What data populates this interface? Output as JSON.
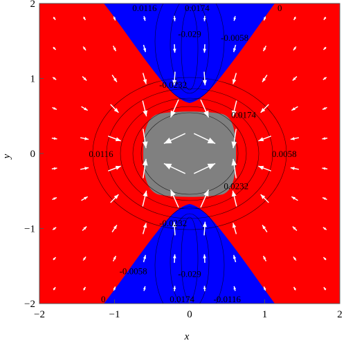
{
  "chart_data": {
    "type": "heatmap",
    "title": "",
    "xlabel": "x",
    "ylabel": "y",
    "xlim": [
      -2,
      2
    ],
    "ylim": [
      -2,
      2
    ],
    "x_ticks": [
      "-2",
      "-1",
      "0",
      "1",
      "2"
    ],
    "y_ticks": [
      "-2",
      "-1",
      "0",
      "1",
      "2"
    ],
    "grid": false,
    "regions": [
      {
        "color": "#ff0000",
        "description": "outer region (left/right wedges)"
      },
      {
        "color": "#0000ff",
        "description": "upper and lower hourglass lobes"
      },
      {
        "color": "#808080",
        "description": "central rounded square"
      }
    ],
    "contour_labels": [
      {
        "text": "0.0116",
        "x": -0.6,
        "y": 2.0
      },
      {
        "text": "0.0174",
        "x": 0.1,
        "y": 2.0
      },
      {
        "text": "0",
        "x": 1.2,
        "y": 2.0
      },
      {
        "text": "-0.029",
        "x": 0.0,
        "y": 1.6
      },
      {
        "text": "-0.0058",
        "x": 0.6,
        "y": 1.55
      },
      {
        "text": "-0.0232",
        "x": -0.22,
        "y": 0.92
      },
      {
        "text": "0.0174",
        "x": 0.72,
        "y": 0.52
      },
      {
        "text": "0.0116",
        "x": -1.18,
        "y": 0.0
      },
      {
        "text": "0.0058",
        "x": 1.26,
        "y": 0.0
      },
      {
        "text": "0.0232",
        "x": 0.62,
        "y": -0.43
      },
      {
        "text": "-0.0232",
        "x": -0.22,
        "y": -0.92
      },
      {
        "text": "-0.0058",
        "x": -0.75,
        "y": -1.56
      },
      {
        "text": "-0.029",
        "x": 0.0,
        "y": -1.6
      },
      {
        "text": "0",
        "x": -1.15,
        "y": -2.0
      },
      {
        "text": "0.0174",
        "x": -0.1,
        "y": -2.0
      },
      {
        "text": "-0.0116",
        "x": 0.5,
        "y": -2.0
      }
    ],
    "colors": {
      "outer": "#ff0000",
      "lobes": "#0000ff",
      "center": "#808080",
      "contour": "#000000",
      "arrows": "#ffffff"
    }
  }
}
